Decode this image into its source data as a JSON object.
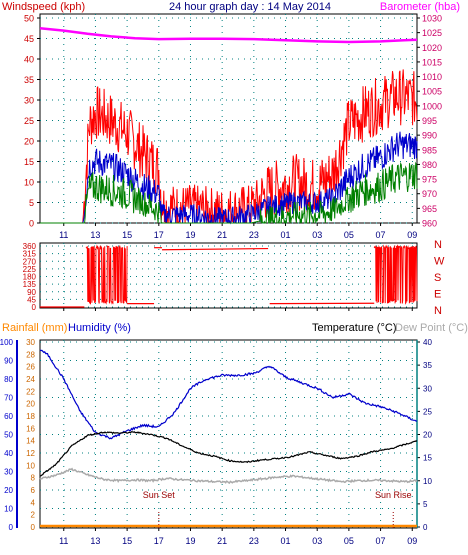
{
  "header": {
    "left_label": "Windspeed (kph)",
    "title": "24 hour graph day : 14 May 2014",
    "right_label": "Barometer (hba)"
  },
  "bottom_header": {
    "rainfall_label": "Rainfall (mm)",
    "humidity_label": "Humidity (%)",
    "temperature_label": "Temperature (°C)",
    "dewpoint_label": "Dew Point (°C)"
  },
  "colors": {
    "windspeed": "#ff0000",
    "gust": "#ff0000",
    "average": "#0000cc",
    "lull": "#008000",
    "barometer": "#ff00ff",
    "direction": "#ff0000",
    "humidity": "#0000cc",
    "temperature": "#000000",
    "dewpoint": "#aaaaaa",
    "rainfall": "#ff8800",
    "axis_left": "#cc0000",
    "axis_right": "#cc0066",
    "axis_blue": "#0000cc",
    "grid": "#008080",
    "dark_axis": "#000080"
  },
  "chart_data": [
    {
      "type": "line",
      "name": "wind-barometer",
      "title": "24 hour graph day : 14 May 2014",
      "x_ticks": [
        "11",
        "13",
        "15",
        "17",
        "19",
        "21",
        "23",
        "01",
        "03",
        "05",
        "07",
        "09"
      ],
      "x_range": [
        9.5,
        33.3
      ],
      "left_axis": {
        "label": "Windspeed (kph)",
        "ticks": [
          0,
          5,
          10,
          15,
          20,
          25,
          30,
          35,
          40,
          45,
          50
        ],
        "range": [
          0,
          50
        ]
      },
      "right_axis": {
        "label": "Barometer (hba)",
        "ticks": [
          960,
          965,
          970,
          975,
          980,
          985,
          990,
          995,
          1000,
          1005,
          1010,
          1015,
          1020,
          1025,
          1030
        ],
        "range": [
          960,
          1030
        ]
      },
      "barometer": {
        "x": [
          9.5,
          11,
          12.5,
          14,
          15.5,
          17,
          19,
          21,
          23,
          25,
          27,
          29,
          31,
          32.5,
          33.3
        ],
        "values": [
          1026.5,
          1025.7,
          1024.6,
          1023.7,
          1023.1,
          1022.8,
          1022.9,
          1022.9,
          1022.8,
          1022.4,
          1022.0,
          1021.8,
          1022.0,
          1022.4,
          1022.6
        ]
      },
      "wind_envelope": {
        "x": [
          9.5,
          12.2,
          12.6,
          13.0,
          14.0,
          15.0,
          16.0,
          17.0,
          17.2,
          17.5,
          19.0,
          21.0,
          22.8,
          24.0,
          25.5,
          27.0,
          28.0,
          29.0,
          30.0,
          31.0,
          32.0,
          33.3
        ],
        "gust": [
          0,
          0,
          24,
          27,
          25,
          22,
          17,
          13,
          5,
          4,
          4,
          3,
          4,
          8,
          10,
          9,
          12,
          24,
          27,
          29,
          31,
          30
        ],
        "average": [
          0,
          0,
          14,
          15,
          14,
          12,
          9,
          7,
          2,
          2,
          2,
          1,
          2,
          4,
          5,
          5,
          6,
          11,
          14,
          16,
          19,
          19
        ],
        "lull": [
          0,
          0,
          8,
          9,
          8,
          7,
          5,
          3,
          0,
          0,
          0,
          0,
          0,
          1,
          2,
          2,
          3,
          6,
          8,
          9,
          11,
          12
        ]
      }
    },
    {
      "type": "line",
      "name": "wind-direction",
      "x_ticks": [
        "11",
        "13",
        "15",
        "17",
        "19",
        "21",
        "23",
        "01",
        "03",
        "05",
        "07",
        "09"
      ],
      "left_axis": {
        "ticks": [
          0,
          45,
          90,
          135,
          180,
          225,
          270,
          315,
          360
        ],
        "range": [
          0,
          360
        ]
      },
      "right_axis_labels": [
        "N",
        "W",
        "S",
        "E",
        "N"
      ],
      "segments": [
        {
          "x": [
            9.5,
            12.3
          ],
          "values": [
            0,
            0
          ]
        },
        {
          "x": [
            12.4,
            15.0
          ],
          "values": [
            350,
            350
          ],
          "scatter_between": [
            20,
            360
          ]
        },
        {
          "x": [
            15.0,
            16.7
          ],
          "values": [
            20,
            20
          ]
        },
        {
          "x": [
            16.7,
            17.2
          ],
          "values": [
            350,
            350
          ]
        },
        {
          "x": [
            17.2,
            23.9
          ],
          "values": [
            338,
            345
          ]
        },
        {
          "x": [
            24.0,
            30.6
          ],
          "values": [
            20,
            22
          ]
        },
        {
          "x": [
            30.6,
            33.3
          ],
          "values": [
            20,
            20
          ],
          "scatter_between": [
            20,
            360
          ]
        }
      ]
    },
    {
      "type": "line",
      "name": "temperature-humidity",
      "x_ticks": [
        "11",
        "13",
        "15",
        "17",
        "19",
        "21",
        "23",
        "01",
        "03",
        "05",
        "07",
        "09"
      ],
      "humidity_axis": {
        "label": "Humidity (%)",
        "ticks": [
          0,
          10,
          20,
          30,
          40,
          50,
          60,
          70,
          80,
          90,
          100
        ],
        "range": [
          0,
          100
        ]
      },
      "rainfall_axis": {
        "label": "Rainfall (mm)",
        "ticks": [
          0,
          2,
          4,
          6,
          8,
          10,
          12,
          14,
          16,
          18,
          20,
          22,
          24,
          26,
          28,
          30
        ],
        "range": [
          0,
          30
        ]
      },
      "temperature_axis": {
        "label": "Temperature (°C)",
        "ticks": [
          0,
          5,
          10,
          15,
          20,
          25,
          30,
          35,
          40
        ],
        "range": [
          0,
          40
        ]
      },
      "annotations": [
        {
          "text": "Sun Set",
          "x": 17.0
        },
        {
          "text": "Sun Rise",
          "x": 31.8
        }
      ],
      "humidity": {
        "x": [
          9.5,
          10,
          11,
          12,
          13,
          14,
          15,
          16,
          17,
          18,
          19,
          20,
          21,
          22,
          23,
          24,
          25,
          26,
          27,
          28,
          29,
          30,
          31,
          32,
          33.3
        ],
        "values": [
          96,
          93,
          80,
          63,
          51,
          48,
          52,
          55,
          54,
          62,
          75,
          80,
          82,
          82,
          83,
          87,
          81,
          78,
          75,
          70,
          72,
          67,
          65,
          62,
          57
        ]
      },
      "temperature": {
        "x": [
          9.5,
          10.5,
          11.5,
          12.5,
          13.5,
          14.5,
          15.5,
          16.5,
          17.5,
          18.5,
          19.5,
          20.5,
          21.5,
          22.5,
          23.5,
          24.5,
          25.5,
          26.5,
          27.5,
          28.5,
          29.5,
          30.5,
          31.5,
          32.5,
          33.3
        ],
        "values": [
          11.0,
          13.5,
          17.5,
          19.8,
          20.5,
          20.3,
          20.5,
          20.0,
          19.2,
          17.5,
          16.0,
          15.3,
          14.3,
          14.0,
          14.5,
          14.8,
          15.3,
          16.2,
          15.5,
          14.8,
          15.3,
          16.3,
          16.8,
          17.8,
          18.6
        ]
      },
      "dewpoint": {
        "x": [
          9.5,
          10.5,
          11.5,
          12.5,
          13.5,
          14.5,
          15.5,
          16.5,
          17.5,
          18.5,
          19.5,
          20.5,
          21.5,
          22.5,
          23.5,
          24.5,
          25.5,
          26.5,
          27.5,
          28.5,
          29.5,
          30.5,
          31.5,
          32.5,
          33.3
        ],
        "values": [
          10.4,
          11.2,
          12.5,
          11.3,
          10.3,
          10.0,
          10.2,
          10.0,
          10.5,
          10.2,
          10.0,
          9.8,
          9.7,
          10.0,
          10.4,
          10.8,
          11.0,
          10.6,
          10.2,
          9.8,
          10.0,
          10.1,
          10.0,
          9.8,
          10.0
        ]
      },
      "rainfall": {
        "x": [
          9.5,
          33.3
        ],
        "values": [
          0,
          0
        ]
      }
    }
  ]
}
